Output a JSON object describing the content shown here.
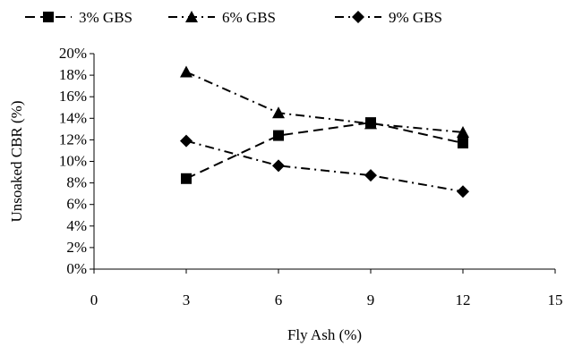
{
  "chart_data": {
    "type": "line",
    "xlabel": "Fly Ash (%)",
    "ylabel": "Unsoaked CBR (%)",
    "xlim": [
      0,
      15
    ],
    "ylim": [
      0,
      20
    ],
    "x_ticks": [
      0,
      3,
      6,
      9,
      12,
      15
    ],
    "y_ticks": [
      0,
      2,
      4,
      6,
      8,
      10,
      12,
      14,
      16,
      18,
      20
    ],
    "y_tick_format": "percent",
    "grid": false,
    "legend_position": "top",
    "series": [
      {
        "name": "3% GBS",
        "marker": "square",
        "dash": "dashed",
        "x": [
          3,
          6,
          9,
          12
        ],
        "values": [
          8.4,
          12.4,
          13.6,
          11.7
        ]
      },
      {
        "name": "6% GBS",
        "marker": "triangle",
        "dash": "dash-dot",
        "x": [
          3,
          6,
          9,
          12
        ],
        "values": [
          18.3,
          14.5,
          13.5,
          12.7
        ]
      },
      {
        "name": "9% GBS",
        "marker": "diamond",
        "dash": "dash-dot",
        "x": [
          3,
          6,
          9,
          12
        ],
        "values": [
          11.9,
          9.6,
          8.7,
          7.2
        ]
      }
    ],
    "colors": {
      "line": "#000000",
      "marker": "#000000",
      "background": "#ffffff"
    }
  }
}
